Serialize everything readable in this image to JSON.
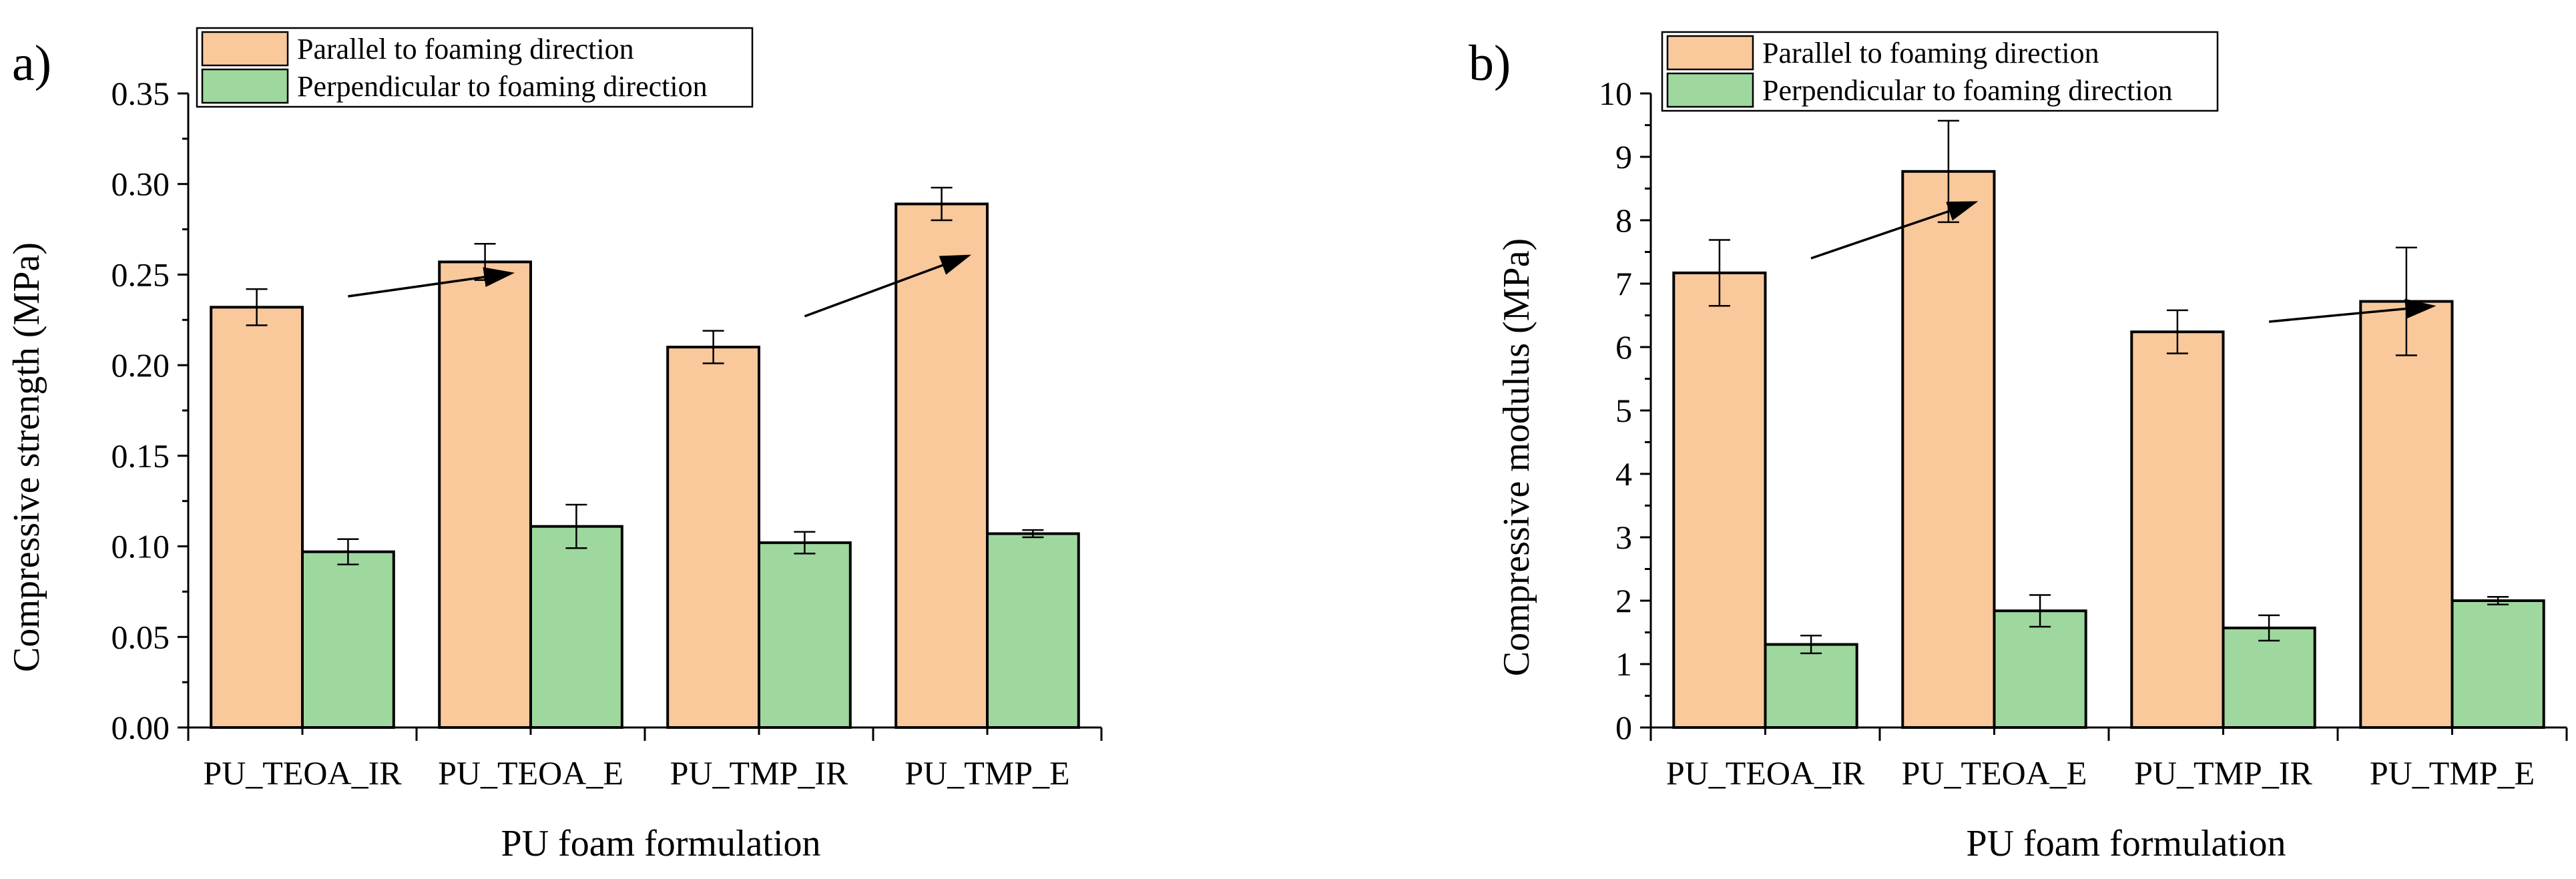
{
  "chart_data": [
    {
      "type": "bar",
      "panel_label": "a)",
      "categories": [
        "PU_TEOA_IR",
        "PU_TEOA_E",
        "PU_TMP_IR",
        "PU_TMP_E"
      ],
      "series": [
        {
          "name": "Parallel to foaming direction",
          "color": "#F9C89B",
          "values": [
            0.232,
            0.257,
            0.21,
            0.289
          ],
          "errors": [
            0.01,
            0.01,
            0.009,
            0.009
          ]
        },
        {
          "name": "Perpendicular to foaming direction",
          "color": "#9ED89E",
          "values": [
            0.097,
            0.111,
            0.102,
            0.107
          ],
          "errors": [
            0.007,
            0.012,
            0.006,
            0.002
          ]
        }
      ],
      "xlabel": "PU foam formulation",
      "ylabel": "Compressive strength (MPa)",
      "ylim": [
        0,
        0.35
      ],
      "yticks": [
        0.0,
        0.05,
        0.1,
        0.15,
        0.2,
        0.25,
        0.3,
        0.35
      ],
      "ytick_labels": [
        "0.00",
        "0.05",
        "0.10",
        "0.15",
        "0.20",
        "0.25",
        "0.30",
        "0.35"
      ],
      "legend_position": "top-left",
      "annotations": [
        {
          "type": "arrow",
          "from": [
            0.7,
            0.238
          ],
          "to": [
            1.43,
            0.251
          ]
        },
        {
          "type": "arrow",
          "from": [
            2.7,
            0.227
          ],
          "to": [
            3.43,
            0.261
          ]
        }
      ]
    },
    {
      "type": "bar",
      "panel_label": "b)",
      "categories": [
        "PU_TEOA_IR",
        "PU_TEOA_E",
        "PU_TMP_IR",
        "PU_TMP_E"
      ],
      "series": [
        {
          "name": "Parallel to foaming direction",
          "color": "#F9C89B",
          "values": [
            7.17,
            8.77,
            6.24,
            6.72
          ],
          "errors": [
            0.52,
            0.8,
            0.34,
            0.85
          ]
        },
        {
          "name": "Perpendicular to foaming direction",
          "color": "#9ED89E",
          "values": [
            1.31,
            1.84,
            1.57,
            2.0
          ],
          "errors": [
            0.14,
            0.25,
            0.2,
            0.06
          ]
        }
      ],
      "xlabel": "PU foam formulation",
      "ylabel": "Compressive modulus (MPa)",
      "ylim": [
        0,
        10
      ],
      "yticks": [
        0,
        1,
        2,
        3,
        4,
        5,
        6,
        7,
        8,
        9,
        10
      ],
      "ytick_labels": [
        "0",
        "1",
        "2",
        "3",
        "4",
        "5",
        "6",
        "7",
        "8",
        "9",
        "10"
      ],
      "legend_position": "top-left",
      "annotations": [
        {
          "type": "arrow",
          "from": [
            0.7,
            7.4
          ],
          "to": [
            1.43,
            8.3
          ]
        },
        {
          "type": "arrow",
          "from": [
            2.7,
            6.4
          ],
          "to": [
            3.43,
            6.65
          ]
        }
      ]
    }
  ]
}
